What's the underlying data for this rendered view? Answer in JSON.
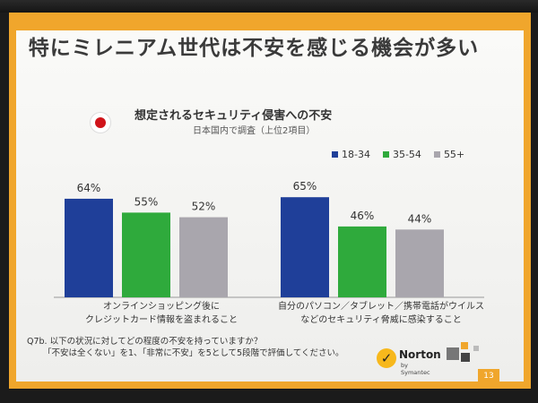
{
  "slide": {
    "title": "特にミレニアム世代は不安を感じる機会が多い",
    "subtitle": "想定されるセキュリティ侵害への不安",
    "note": "日本国内で調査（上位2項目）",
    "question_line1": "Q7b. 以下の状況に対してどの程度の不安を持っていますか？",
    "question_line2": "「不安は全くない」を1、「非常に不安」を5として5段階で評価してください。",
    "brand": "Norton",
    "brand_sub": "by Symantec",
    "page_number": "13",
    "colors": {
      "frame": "#f0a62c",
      "check": "#f7b81c"
    }
  },
  "chart_data": {
    "type": "bar",
    "categories": [
      [
        "オンラインショッピング後に",
        "クレジットカード情報を盗まれること"
      ],
      [
        "自分のパソコン／タブレット／携帯電話がウイルス",
        "などのセキュリティ脅威に感染すること"
      ]
    ],
    "series": [
      {
        "name": "18-34",
        "values": [
          64,
          65
        ],
        "color": "#1f3f99"
      },
      {
        "name": "35-54",
        "values": [
          55,
          46
        ],
        "color": "#2faa3c"
      },
      {
        "name": "55+",
        "values": [
          52,
          44
        ],
        "color": "#a9a6ad"
      }
    ],
    "value_labels": [
      [
        "64%",
        "65%"
      ],
      [
        "55%",
        "46%"
      ],
      [
        "52%",
        "44%"
      ]
    ],
    "unit": "%",
    "ylim": [
      0,
      100
    ],
    "legend_position": "top-right",
    "grid": false
  }
}
